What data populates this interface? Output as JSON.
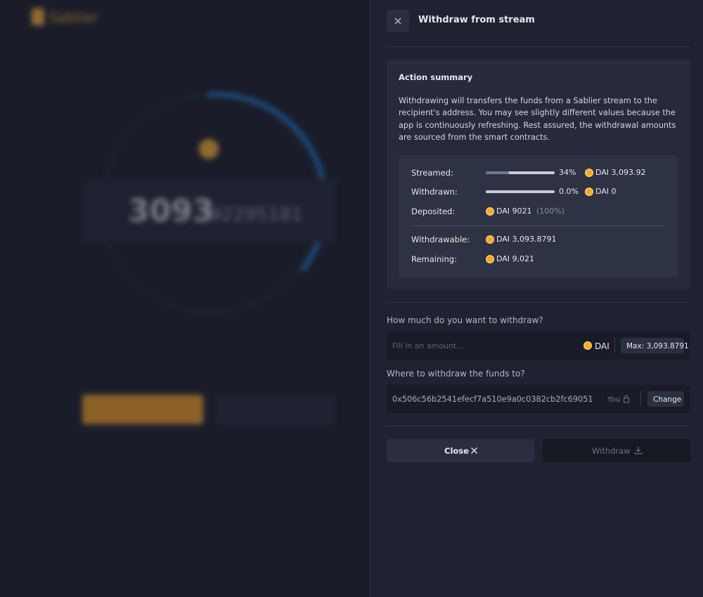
{
  "background": {
    "brand": "Sablier",
    "amount_integer": "3093",
    "amount_decimal": ".92295181"
  },
  "header": {
    "title": "Withdraw from stream"
  },
  "summary": {
    "title": "Action summary",
    "description": "Withdrawing will transfers the funds from a Sablier stream to the recipient's address. You may see slightly different values because the app is continuously refreshing. Rest assured, the withdrawal amounts are sourced from the smart contracts.",
    "rows": [
      {
        "label": "Streamed:",
        "progress": 34,
        "progress_label": "34%",
        "amount": "DAI 3,093.92"
      },
      {
        "label": "Withdrawn:",
        "progress": 0,
        "progress_label": "0.0%",
        "amount": "DAI 0"
      },
      {
        "label": "Deposited:",
        "amount": "DAI 9021",
        "note": "(100%)"
      },
      {
        "label": "Withdrawable:",
        "amount": "DAI 3,093.8791"
      },
      {
        "label": "Remaining:",
        "amount": "DAI 9,021"
      }
    ]
  },
  "amount_field": {
    "label": "How much do you want to withdraw?",
    "placeholder": "Fill in an amount...",
    "token": "DAI",
    "max_button": "Max: 3,093.8791"
  },
  "address_field": {
    "label": "Where to withdraw the funds to?",
    "address": "0x506c56b2541efecf7a510e9a0c0382cb2fc69051",
    "owner_tag": "You",
    "change_button": "Change"
  },
  "actions": {
    "close": "Close",
    "withdraw": "Withdraw"
  }
}
